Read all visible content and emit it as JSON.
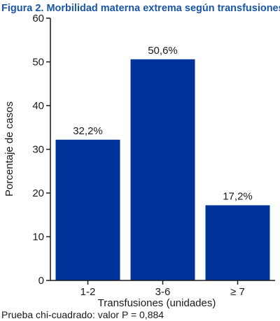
{
  "chart_data": {
    "type": "bar",
    "title": "Figura 2. Morbilidad materna extrema según transfusiones.",
    "xlabel": "Transfusiones (unidades)",
    "ylabel": "Porcentaje de casos",
    "categories": [
      "1-2",
      "3-6",
      "≥ 7"
    ],
    "values": [
      32.2,
      50.6,
      17.2
    ],
    "data_labels": [
      "32,2%",
      "50,6%",
      "17,2%"
    ],
    "ylim": [
      0,
      60
    ],
    "yticks": [
      0,
      10,
      20,
      30,
      40,
      50,
      60
    ],
    "grid": false,
    "legend": "none",
    "bar_color": "#003399",
    "title_color": "#1a56a8",
    "note": "Prueba chi-cuadrado: valor P = 0,884"
  }
}
